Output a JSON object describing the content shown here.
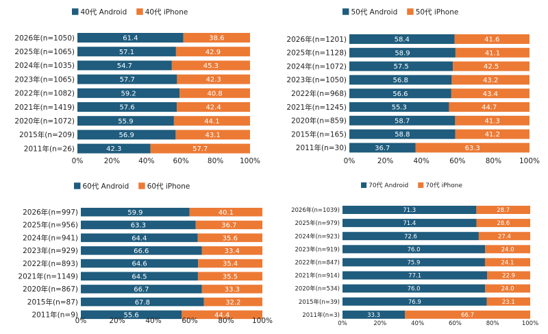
{
  "colors": {
    "android": "#1f5c7d",
    "iphone": "#ec7a35",
    "text": "#222222",
    "bar_text": "#ffffff"
  },
  "chart_data": [
    {
      "type": "bar",
      "orientation": "horizontal",
      "stacked": true,
      "legend_position": "top",
      "categories": [
        "2026年(n=1050)",
        "2025年(n=1065)",
        "2024年(n=1035)",
        "2023年(n=1065)",
        "2022年(n=1082)",
        "2021年(n=1419)",
        "2020年(n=1072)",
        "2015年(n=209)",
        "2011年(n=26)"
      ],
      "series": [
        {
          "name": "40代 Android",
          "values": [
            61.4,
            57.1,
            54.7,
            57.7,
            59.2,
            57.6,
            55.9,
            56.9,
            42.3
          ]
        },
        {
          "name": "40代 iPhone",
          "values": [
            38.6,
            42.9,
            45.3,
            42.3,
            40.8,
            42.4,
            44.1,
            43.1,
            57.7
          ]
        }
      ],
      "xlim": [
        0,
        100
      ],
      "x_tick_labels": [
        "0%",
        "20%",
        "40%",
        "60%",
        "80%",
        "100%"
      ]
    },
    {
      "type": "bar",
      "orientation": "horizontal",
      "stacked": true,
      "legend_position": "top",
      "categories": [
        "2026年(n=1201)",
        "2025年(n=1128)",
        "2024年(n=1072)",
        "2023年(n=1050)",
        "2022年(n=968)",
        "2021年(n=1245)",
        "2020年(n=859)",
        "2015年(n=165)",
        "2011年(n=30)"
      ],
      "series": [
        {
          "name": "50代 Android",
          "values": [
            58.4,
            58.9,
            57.5,
            56.8,
            56.6,
            55.3,
            58.7,
            58.8,
            36.7
          ]
        },
        {
          "name": "50代 iPhone",
          "values": [
            41.6,
            41.1,
            42.5,
            43.2,
            43.4,
            44.7,
            41.3,
            41.2,
            63.3
          ]
        }
      ],
      "xlim": [
        0,
        100
      ],
      "x_tick_labels": [
        "0%",
        "20%",
        "40%",
        "60%",
        "80%",
        "100%"
      ]
    },
    {
      "type": "bar",
      "orientation": "horizontal",
      "stacked": true,
      "legend_position": "top",
      "categories": [
        "2026年(n=997)",
        "2025年(n=956)",
        "2024年(n=941)",
        "2023年(n=929)",
        "2022年(n=893)",
        "2021年(n=1149)",
        "2020年(n=867)",
        "2015年(n=87)",
        "2011年(n=9)"
      ],
      "series": [
        {
          "name": "60代 Android",
          "values": [
            59.9,
            63.3,
            64.4,
            66.6,
            64.6,
            64.5,
            66.7,
            67.8,
            55.6
          ]
        },
        {
          "name": "60代 iPhone",
          "values": [
            40.1,
            36.7,
            35.6,
            33.4,
            35.4,
            35.5,
            33.3,
            32.2,
            44.4
          ]
        }
      ],
      "xlim": [
        0,
        100
      ],
      "x_tick_labels": [
        "0%",
        "20%",
        "40%",
        "60%",
        "80%",
        "100%"
      ]
    },
    {
      "type": "bar",
      "orientation": "horizontal",
      "stacked": true,
      "legend_position": "top",
      "categories": [
        "2026年(n=1039)",
        "2025年(n=979)",
        "2024年(n=923)",
        "2023年(n=919)",
        "2022年(n=847)",
        "2021年(n=914)",
        "2020年(n=534)",
        "2015年(n=39)",
        "2011年(n=3)"
      ],
      "series": [
        {
          "name": "70代 Android",
          "values": [
            71.3,
            71.4,
            72.6,
            76.0,
            75.9,
            77.1,
            76.0,
            76.9,
            33.3
          ]
        },
        {
          "name": "70代 iPhone",
          "values": [
            28.7,
            28.6,
            27.4,
            24.0,
            24.1,
            22.9,
            24.0,
            23.1,
            66.7
          ]
        }
      ],
      "xlim": [
        0,
        100
      ],
      "x_tick_labels": [
        "0%",
        "20%",
        "40%",
        "60%",
        "80%",
        "100%"
      ]
    }
  ]
}
